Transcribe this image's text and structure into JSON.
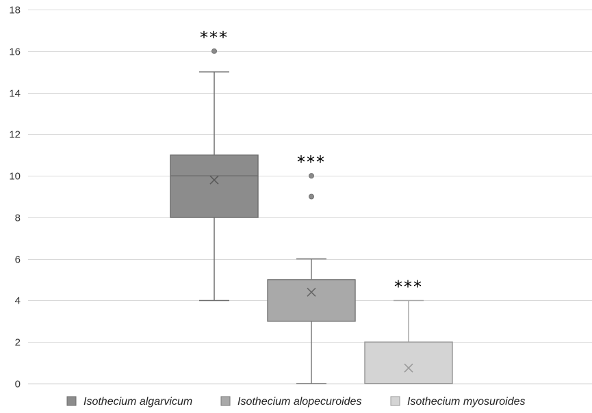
{
  "chart_data": {
    "type": "boxplot",
    "ylim": [
      0,
      18
    ],
    "yticks": [
      0,
      2,
      4,
      6,
      8,
      10,
      12,
      14,
      16,
      18
    ],
    "grid": true,
    "legend_position": "bottom",
    "series": [
      {
        "name": "Isothecium algarvicum",
        "color": "#8c8c8c",
        "whisker_low": 4,
        "q1": 8,
        "median": 10,
        "q3": 11,
        "whisker_high": 15,
        "mean": 9.8,
        "outliers": [
          16
        ],
        "annotation": "***"
      },
      {
        "name": "Isothecium alopecuroides",
        "color": "#a9a9a9",
        "whisker_low": 0,
        "q1": 3,
        "median": 5,
        "q3": 5,
        "whisker_high": 6,
        "mean": 4.4,
        "outliers": [
          9,
          10
        ],
        "annotation": "***"
      },
      {
        "name": "Isothecium myosuroides",
        "color": "#d4d4d4",
        "whisker_low": 0,
        "q1": 0,
        "median": 0,
        "q3": 2,
        "whisker_high": 4,
        "mean": 0.75,
        "outliers": [],
        "annotation": "***"
      }
    ]
  }
}
